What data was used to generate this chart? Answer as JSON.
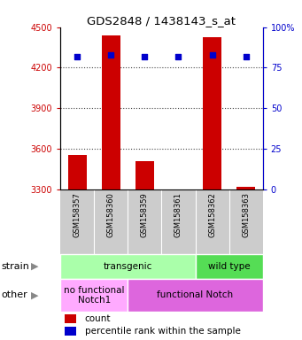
{
  "title": "GDS2848 / 1438143_s_at",
  "samples": [
    "GSM158357",
    "GSM158360",
    "GSM158359",
    "GSM158361",
    "GSM158362",
    "GSM158363"
  ],
  "counts": [
    3555,
    4440,
    3510,
    3295,
    4425,
    3315
  ],
  "percentiles": [
    82,
    83,
    82,
    82,
    83,
    82
  ],
  "ylim_left": [
    3300,
    4500
  ],
  "ylim_right": [
    0,
    100
  ],
  "yticks_left": [
    3300,
    3600,
    3900,
    4200,
    4500
  ],
  "yticks_right": [
    0,
    25,
    50,
    75,
    100
  ],
  "ytick_right_labels": [
    "0",
    "25",
    "50",
    "75",
    "100%"
  ],
  "bar_color": "#cc0000",
  "dot_color": "#0000cc",
  "strain_row": [
    {
      "label": "transgenic",
      "span": [
        0,
        4
      ],
      "color": "#aaffaa"
    },
    {
      "label": "wild type",
      "span": [
        4,
        6
      ],
      "color": "#55dd55"
    }
  ],
  "other_row": [
    {
      "label": "no functional\nNotch1",
      "span": [
        0,
        2
      ],
      "color": "#ffaaff"
    },
    {
      "label": "functional Notch",
      "span": [
        2,
        6
      ],
      "color": "#dd66dd"
    }
  ],
  "legend_items": [
    {
      "label": "count",
      "color": "#cc0000"
    },
    {
      "label": "percentile rank within the sample",
      "color": "#0000cc"
    }
  ],
  "left_axis_color": "#cc0000",
  "right_axis_color": "#0000cc",
  "xtick_bg_color": "#cccccc",
  "grid_dotted_color": "#444444"
}
